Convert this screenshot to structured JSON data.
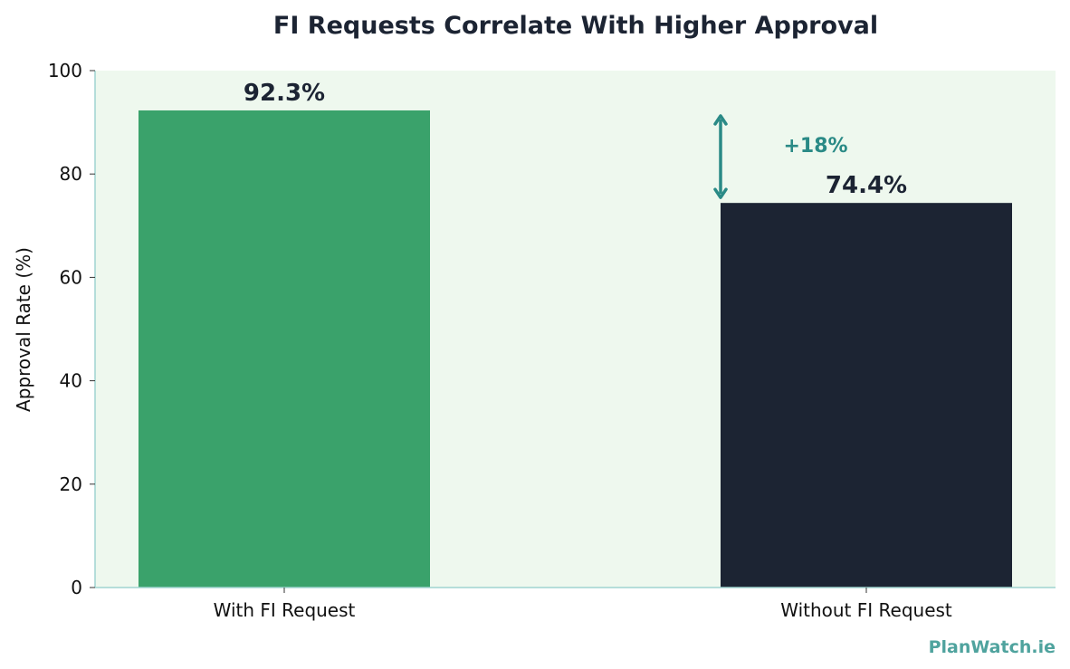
{
  "chart_data": {
    "type": "bar",
    "title": "FI Requests Correlate With Higher Approval",
    "xlabel": "",
    "ylabel": "Approval Rate (%)",
    "categories": [
      "With FI Request",
      "Without FI Request"
    ],
    "values": [
      92.3,
      74.4
    ],
    "data_labels": [
      "92.3%",
      "74.4%"
    ],
    "bar_colors": [
      "#3aa26b",
      "#1c2433"
    ],
    "ylim": [
      0,
      100
    ],
    "yticks": [
      0,
      20,
      40,
      60,
      80,
      100
    ],
    "grid": false,
    "legend": "none",
    "plot_background": "#eef8ee",
    "annotation": {
      "text": "+18%",
      "color": "#2a8a86",
      "from_value": 74.4,
      "to_value": 92.3
    }
  },
  "watermark": {
    "text": "PlanWatch.ie",
    "color": "#4fa39e"
  }
}
